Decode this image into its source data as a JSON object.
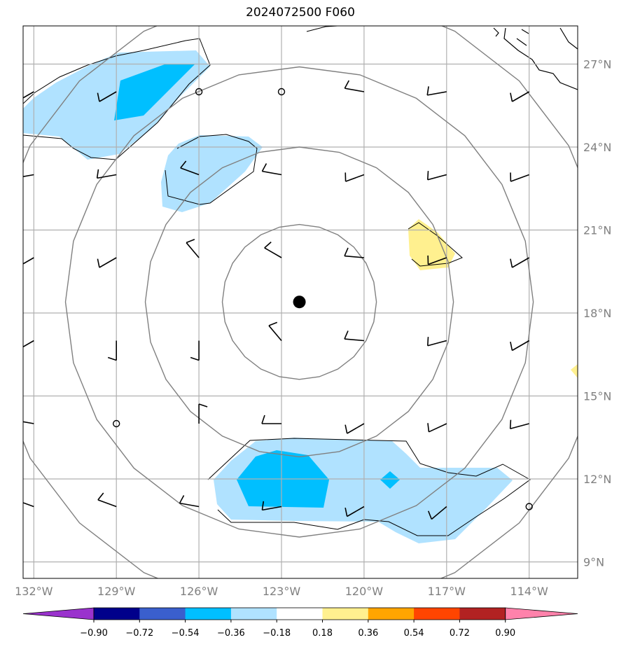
{
  "title": "2024072500 F060",
  "map": {
    "lon_range": [
      -132.3,
      -113.5
    ],
    "lat_range": [
      8.5,
      28.3
    ],
    "lat_ticks": [
      {
        "value": 9,
        "label": "9°N"
      },
      {
        "value": 12,
        "label": "12°N"
      },
      {
        "value": 15,
        "label": "15°N"
      },
      {
        "value": 18,
        "label": "18°N"
      },
      {
        "value": 21,
        "label": "21°N"
      },
      {
        "value": 24,
        "label": "24°N"
      },
      {
        "value": 27,
        "label": "27°N"
      }
    ],
    "lon_ticks": [
      {
        "value": -132,
        "label": "132°W"
      },
      {
        "value": -129,
        "label": "129°W"
      },
      {
        "value": -126,
        "label": "126°W"
      },
      {
        "value": -123,
        "label": "123°W"
      },
      {
        "value": -120,
        "label": "120°W"
      },
      {
        "value": -117,
        "label": "117°W"
      },
      {
        "value": -114,
        "label": "114°W"
      }
    ],
    "storm_center": {
      "lon": -122.35,
      "lat": 18.4
    },
    "range_rings_deg": [
      2.8,
      5.6,
      8.5,
      11.3
    ],
    "calm_markers": [
      {
        "lon": -126,
        "lat": 26
      },
      {
        "lon": -123,
        "lat": 26
      },
      {
        "lon": -129,
        "lat": 14
      },
      {
        "lon": -114,
        "lat": 11
      }
    ],
    "wind_barbs": [
      {
        "lon": -132,
        "lat": 26,
        "dir": 240,
        "kt": 10
      },
      {
        "lon": -129,
        "lat": 26,
        "dir": 240,
        "kt": 10
      },
      {
        "lon": -120,
        "lat": 26,
        "dir": 280,
        "kt": 10
      },
      {
        "lon": -117,
        "lat": 26,
        "dir": 260,
        "kt": 10
      },
      {
        "lon": -114,
        "lat": 26,
        "dir": 240,
        "kt": 10
      },
      {
        "lon": -132,
        "lat": 23,
        "dir": 260,
        "kt": 10
      },
      {
        "lon": -129,
        "lat": 23,
        "dir": 260,
        "kt": 10
      },
      {
        "lon": -126,
        "lat": 23,
        "dir": 290,
        "kt": 10
      },
      {
        "lon": -123,
        "lat": 23,
        "dir": 280,
        "kt": 10
      },
      {
        "lon": -120,
        "lat": 23,
        "dir": 250,
        "kt": 10
      },
      {
        "lon": -117,
        "lat": 23,
        "dir": 255,
        "kt": 10
      },
      {
        "lon": -114,
        "lat": 23,
        "dir": 250,
        "kt": 10
      },
      {
        "lon": -132,
        "lat": 20,
        "dir": 240,
        "kt": 10
      },
      {
        "lon": -129,
        "lat": 20,
        "dir": 240,
        "kt": 10
      },
      {
        "lon": -126,
        "lat": 20,
        "dir": 320,
        "kt": 10
      },
      {
        "lon": -123,
        "lat": 20,
        "dir": 300,
        "kt": 10
      },
      {
        "lon": -120,
        "lat": 20,
        "dir": 275,
        "kt": 10
      },
      {
        "lon": -117,
        "lat": 20,
        "dir": 250,
        "kt": 10
      },
      {
        "lon": -114,
        "lat": 20,
        "dir": 240,
        "kt": 10
      },
      {
        "lon": -132,
        "lat": 17,
        "dir": 240,
        "kt": 10
      },
      {
        "lon": -129,
        "lat": 17,
        "dir": 180,
        "kt": 10
      },
      {
        "lon": -126,
        "lat": 17,
        "dir": 180,
        "kt": 10
      },
      {
        "lon": -123,
        "lat": 17,
        "dir": 320,
        "kt": 10
      },
      {
        "lon": -120,
        "lat": 17,
        "dir": 275,
        "kt": 10
      },
      {
        "lon": -117,
        "lat": 17,
        "dir": 255,
        "kt": 10
      },
      {
        "lon": -114,
        "lat": 17,
        "dir": 240,
        "kt": 10
      },
      {
        "lon": -132,
        "lat": 14,
        "dir": 280,
        "kt": 10
      },
      {
        "lon": -126,
        "lat": 14,
        "dir": 0,
        "kt": 10
      },
      {
        "lon": -123,
        "lat": 14,
        "dir": 270,
        "kt": 10
      },
      {
        "lon": -120,
        "lat": 14,
        "dir": 240,
        "kt": 10
      },
      {
        "lon": -117,
        "lat": 14,
        "dir": 245,
        "kt": 10
      },
      {
        "lon": -114,
        "lat": 14,
        "dir": 255,
        "kt": 10
      },
      {
        "lon": -132,
        "lat": 11,
        "dir": 290,
        "kt": 10
      },
      {
        "lon": -129,
        "lat": 11,
        "dir": 290,
        "kt": 10
      },
      {
        "lon": -126,
        "lat": 11,
        "dir": 280,
        "kt": 10
      },
      {
        "lon": -123,
        "lat": 11,
        "dir": 260,
        "kt": 10
      },
      {
        "lon": -120,
        "lat": 11,
        "dir": 240,
        "kt": 10
      },
      {
        "lon": -117,
        "lat": 11,
        "dir": 230,
        "kt": 10
      }
    ]
  },
  "colorbar": {
    "ticks": [
      "−0.90",
      "−0.72",
      "−0.54",
      "−0.36",
      "−0.18",
      "0.18",
      "0.36",
      "0.54",
      "0.72",
      "0.90"
    ],
    "colors": {
      "under": "#9a32cd",
      "bins": [
        "#00008b",
        "#3a5fcd",
        "#00bfff",
        "#b0e2ff",
        "#ffffff",
        "#fff08f",
        "#ffa500",
        "#ff4500",
        "#b22222"
      ],
      "over": "#ff82ab"
    }
  }
}
